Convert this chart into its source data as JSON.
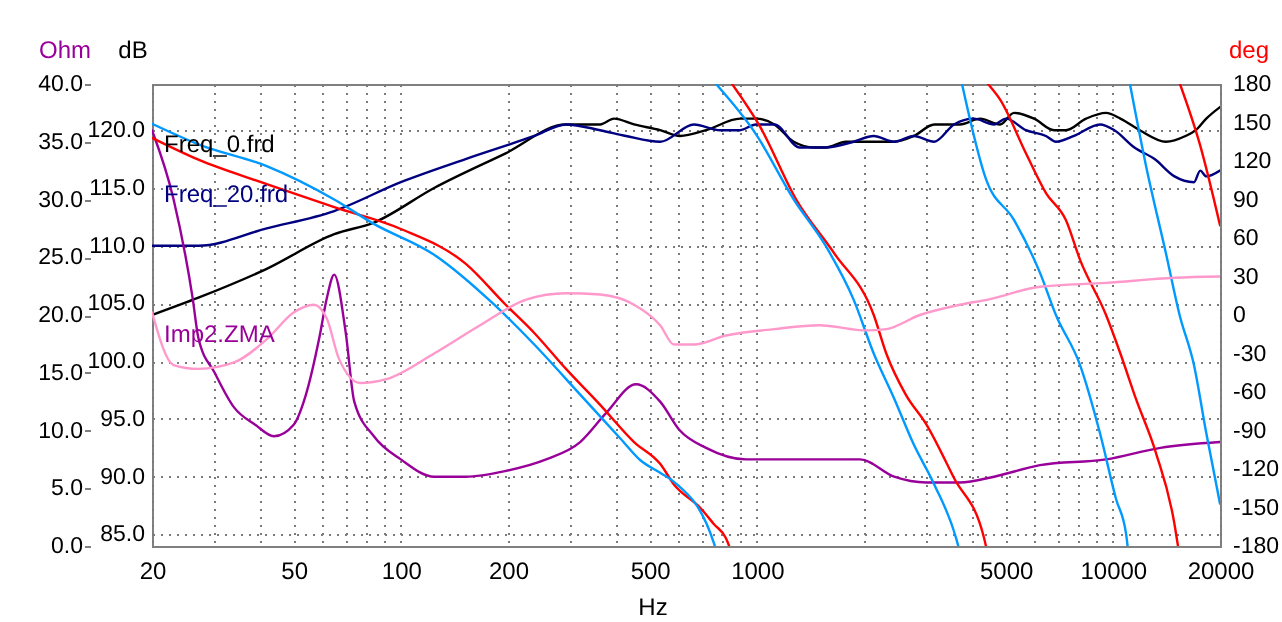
{
  "chart_data": {
    "type": "line",
    "xlabel": "Hz",
    "ylabel": "dB",
    "y2label": "Ohm",
    "y3label": "deg",
    "log": "x",
    "grid": true,
    "legend": "top left",
    "xlim": [
      20,
      20000
    ],
    "xticks": [
      20,
      {
        "value": 30,
        "label": null
      },
      {
        "value": 40,
        "label": null
      },
      50,
      {
        "value": 60,
        "label": null
      },
      {
        "value": 70,
        "label": null
      },
      {
        "value": 80,
        "label": null
      },
      {
        "value": 90,
        "label": null
      },
      100,
      200,
      {
        "value": 300,
        "label": null
      },
      {
        "value": 400,
        "label": null
      },
      500,
      {
        "value": 600,
        "label": null
      },
      {
        "value": 700,
        "label": null
      },
      {
        "value": 800,
        "label": null
      },
      {
        "value": 900,
        "label": null
      },
      1000,
      {
        "value": 2000,
        "label": null
      },
      {
        "value": 3000,
        "label": null
      },
      {
        "value": 4000,
        "label": null
      },
      5000,
      {
        "value": 6000,
        "label": null
      },
      {
        "value": 7000,
        "label": null
      },
      {
        "value": 8000,
        "label": null
      },
      {
        "value": 9000,
        "label": null
      },
      10000,
      20000
    ],
    "ylim": [
      84,
      124
    ],
    "yticks": [
      {
        "value": 85,
        "label": "85.0"
      },
      {
        "value": 90,
        "label": "90.0"
      },
      {
        "value": 95,
        "label": "95.0"
      },
      {
        "value": 100,
        "label": "100.0"
      },
      {
        "value": 105,
        "label": "105.0"
      },
      {
        "value": 110,
        "label": "110.0"
      },
      {
        "value": 115,
        "label": "115.0"
      },
      {
        "value": 120,
        "label": "120.0"
      }
    ],
    "y2lim": [
      0,
      40
    ],
    "y2ticks": [
      {
        "value": 0,
        "label": "0.0"
      },
      {
        "value": 5,
        "label": "5.0"
      },
      {
        "value": 10,
        "label": "10.0"
      },
      {
        "value": 15,
        "label": "15.0"
      },
      {
        "value": 20,
        "label": "20.0"
      },
      {
        "value": 25,
        "label": "25.0"
      },
      {
        "value": 30,
        "label": "30.0"
      },
      {
        "value": 35,
        "label": "35.0"
      },
      {
        "value": 40,
        "label": "40.0"
      }
    ],
    "y3lim": [
      -180,
      180
    ],
    "y3ticks": [
      -180,
      -150,
      -120,
      -90,
      -60,
      -30,
      0,
      30,
      60,
      90,
      120,
      150,
      180
    ],
    "series": [
      {
        "name": "Freq_0.frd",
        "color": "#000000",
        "x": [
          20,
          27,
          42,
          65,
          84,
          124,
          197,
          291,
          363,
          397,
          452,
          535,
          608,
          720,
          897,
          994,
          1120,
          1270,
          1450,
          1560,
          1780,
          2030,
          2430,
          2760,
          3150,
          3720,
          4240,
          4820,
          5280,
          6010,
          6840,
          7380,
          8410,
          9570,
          10500,
          11900,
          14100,
          16000,
          17100,
          18300,
          20000
        ],
        "values": [
          104,
          105.5,
          108,
          111,
          112,
          115,
          118,
          120.5,
          120.5,
          121,
          120.5,
          120,
          119.5,
          120,
          121,
          121,
          120.5,
          119,
          118.5,
          118.5,
          119,
          119,
          119,
          119.5,
          120.5,
          120.5,
          121,
          120.5,
          121.5,
          121,
          120,
          120,
          121,
          121.5,
          121,
          120,
          119,
          119.5,
          120,
          121,
          122
        ]
      },
      {
        "name": "Freq_20.frd",
        "color": "#000080",
        "x": [
          20,
          27,
          42,
          65,
          100,
          152,
          237,
          291,
          363,
          429,
          535,
          666,
          788,
          897,
          994,
          1120,
          1320,
          1560,
          1870,
          2130,
          2430,
          2760,
          3150,
          3580,
          4070,
          4640,
          5010,
          5700,
          6490,
          6920,
          7780,
          9200,
          10100,
          11500,
          13100,
          14900,
          16900,
          17600,
          18300,
          20000
        ],
        "values": [
          110,
          110,
          111.5,
          113,
          115.5,
          117.5,
          119.5,
          120.5,
          120,
          119.5,
          119,
          120.5,
          120,
          120,
          120.5,
          120.5,
          118.5,
          118.5,
          119,
          119.5,
          119,
          119.5,
          119,
          120.5,
          121,
          120.5,
          121,
          120,
          119.5,
          119,
          119.5,
          120.5,
          120,
          118.5,
          117.5,
          116,
          115.5,
          116.5,
          116,
          116.5
        ]
      },
      {
        "name": "Imp2.ZMA",
        "color": "#990099",
        "axis": "y2",
        "x": [
          20,
          23,
          26,
          27,
          30,
          34,
          39,
          44,
          50,
          54,
          59,
          62,
          65,
          70,
          74,
          84,
          100,
          124,
          152,
          197,
          256,
          319,
          377,
          458,
          535,
          608,
          720,
          932,
          1370,
          1950,
          2430,
          2990,
          3720,
          4640,
          6240,
          9570,
          13600,
          20000
        ],
        "values": [
          36,
          30,
          21.5,
          18,
          15,
          12,
          10.5,
          9.5,
          10.5,
          13,
          18,
          21.5,
          23.5,
          18.5,
          12.5,
          9.5,
          7.5,
          6,
          6,
          6.5,
          7.5,
          9,
          11.5,
          14,
          12.5,
          10,
          8.5,
          7.5,
          7.5,
          7.5,
          6,
          5.5,
          5.5,
          6,
          7,
          7.5,
          8.5,
          9
        ]
      },
      {
        "color": "#ff0000",
        "axis": "y3",
        "x": [
          20,
          27,
          42,
          65,
          100,
          152,
          197,
          237,
          291,
          363,
          452,
          535,
          585,
          692,
          758,
          819,
          836,
          844,
          852,
          1020,
          1290,
          1650,
          2130,
          2310,
          2620,
          2990,
          3580,
          4350,
          4400,
          4430,
          4460,
          4820,
          5700,
          6490,
          7380,
          8090,
          9570,
          10500,
          11600,
          13200,
          14900,
          15240,
          15340,
          15440,
          17600,
          20000
        ],
        "values": [
          138,
          121,
          102,
          84,
          67,
          40,
          8,
          -14,
          -42,
          -70,
          -99,
          -116,
          -132,
          -150,
          -163,
          -174,
          -180,
          null,
          180,
          147,
          90,
          48,
          0,
          -30,
          -62,
          -85,
          -127,
          -174,
          -180,
          null,
          180,
          168,
          126,
          95,
          74,
          43,
          0,
          -30,
          -65,
          -107,
          -163,
          -180,
          null,
          180,
          132,
          70
        ]
      },
      {
        "color": "#0099ff",
        "axis": "y3",
        "x": [
          20,
          27,
          42,
          65,
          84,
          124,
          183,
          237,
          319,
          413,
          470,
          535,
          585,
          758,
          762,
          765,
          768,
          994,
          1270,
          1560,
          1870,
          2130,
          2430,
          2760,
          3150,
          3630,
          3680,
          3720,
          3770,
          4400,
          5280,
          6240,
          6920,
          8090,
          9200,
          10200,
          10900,
          11000,
          11100,
          11170,
          12400,
          14100,
          15400,
          16900,
          18300,
          20000
        ],
        "values": [
          149,
          133,
          116,
          90,
          71,
          47,
          8,
          -23,
          -62,
          -96,
          -113,
          -123,
          -130,
          -178,
          -180,
          null,
          180,
          141,
          90,
          54,
          12,
          -30,
          -65,
          -101,
          -132,
          -174,
          -180,
          null,
          180,
          106,
          74,
          33,
          0,
          -39,
          -92,
          -143,
          -171,
          -180,
          null,
          180,
          116,
          48,
          0,
          -39,
          -92,
          -147
        ]
      },
      {
        "color": "#ff99cc",
        "axis": "y3",
        "x": [
          20,
          23,
          27,
          34,
          42,
          50,
          57,
          62,
          67,
          77,
          91,
          124,
          167,
          225,
          291,
          363,
          452,
          535,
          585,
          666,
          819,
          1120,
          1500,
          2030,
          2310,
          2870,
          3720,
          4460,
          6240,
          9570,
          14900,
          20000
        ],
        "values": [
          2,
          -39,
          -42,
          -37,
          -19,
          2,
          8,
          -3,
          -34,
          -53,
          -50,
          -30,
          -8,
          12,
          17,
          16,
          8,
          -8,
          -23,
          -23,
          -16,
          -11,
          -8,
          -12,
          -11,
          0,
          8,
          12,
          22,
          25,
          29,
          30
        ]
      }
    ]
  }
}
